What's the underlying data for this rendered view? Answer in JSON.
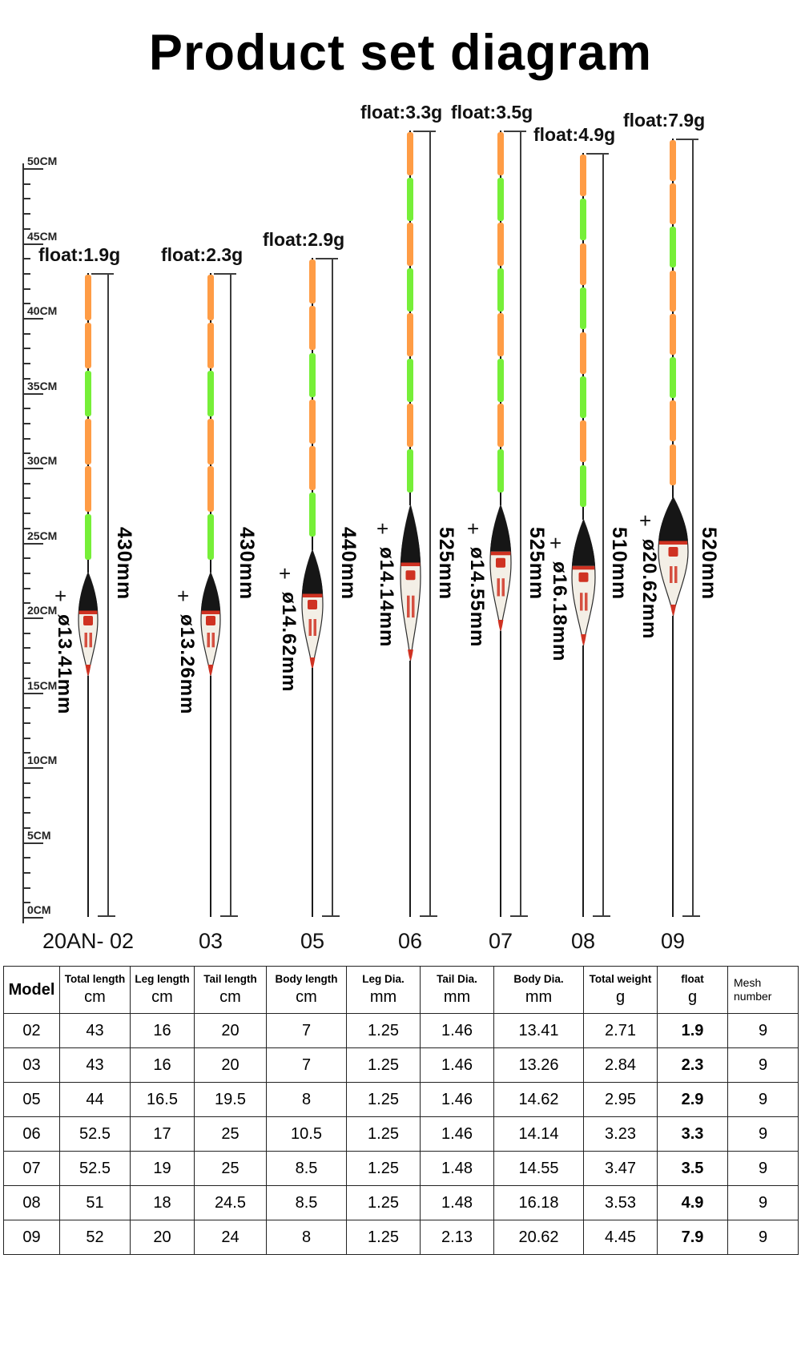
{
  "title": "Product set diagram",
  "glyphs": {
    "plus": "+"
  },
  "colors": {
    "stripe_orange": "#ff9c45",
    "stripe_green": "#76ef38",
    "body_dark": "#161616",
    "body_light": "#f3efe6",
    "accent_red": "#cf3222",
    "line": "#3d3d3d"
  },
  "ruler": {
    "major_labels_top_to_bottom": [
      "50CM",
      "45CM",
      "40CM",
      "35CM",
      "30CM",
      "25CM",
      "20CM",
      "15CM",
      "10CM",
      "5CM",
      "0CM"
    ]
  },
  "floats": [
    {
      "model_label": "20AN- 02",
      "weight_label": "float:1.9g",
      "diameter_label": "ø13.41mm",
      "length_label": "430mm",
      "stripes": [
        "orange",
        "orange",
        "green",
        "orange",
        "orange",
        "green"
      ]
    },
    {
      "model_label": "03",
      "weight_label": "float:2.3g",
      "diameter_label": "ø13.26mm",
      "length_label": "430mm",
      "stripes": [
        "orange",
        "orange",
        "green",
        "orange",
        "orange",
        "green"
      ]
    },
    {
      "model_label": "05",
      "weight_label": "float:2.9g",
      "diameter_label": "ø14.62mm",
      "length_label": "440mm",
      "stripes": [
        "orange",
        "orange",
        "green",
        "orange",
        "orange",
        "green"
      ]
    },
    {
      "model_label": "06",
      "weight_label": "float:3.3g",
      "diameter_label": "ø14.14mm",
      "length_label": "525mm",
      "stripes": [
        "orange",
        "green",
        "orange",
        "green",
        "orange",
        "green",
        "orange",
        "green"
      ]
    },
    {
      "model_label": "07",
      "weight_label": "float:3.5g",
      "diameter_label": "ø14.55mm",
      "length_label": "525mm",
      "stripes": [
        "orange",
        "green",
        "orange",
        "green",
        "orange",
        "green",
        "orange",
        "green"
      ]
    },
    {
      "model_label": "08",
      "weight_label": "float:4.9g",
      "diameter_label": "ø16.18mm",
      "length_label": "510mm",
      "stripes": [
        "orange",
        "green",
        "orange",
        "green",
        "orange",
        "green",
        "orange",
        "green"
      ]
    },
    {
      "model_label": "09",
      "weight_label": "float:7.9g",
      "diameter_label": "ø20.62mm",
      "length_label": "520mm",
      "stripes": [
        "orange",
        "orange",
        "green",
        "orange",
        "orange",
        "green",
        "orange",
        "orange"
      ]
    }
  ],
  "table": {
    "headers": [
      {
        "label": "Model",
        "unit": ""
      },
      {
        "label": "Total length",
        "unit": "cm"
      },
      {
        "label": "Leg length",
        "unit": "cm"
      },
      {
        "label": "Tail length",
        "unit": "cm"
      },
      {
        "label": "Body length",
        "unit": "cm"
      },
      {
        "label": "Leg Dia.",
        "unit": "mm"
      },
      {
        "label": "Tail Dia.",
        "unit": "mm"
      },
      {
        "label": "Body Dia.",
        "unit": "mm"
      },
      {
        "label": "Total weight",
        "unit": "g"
      },
      {
        "label": "float",
        "unit": "g"
      },
      {
        "label": "Mesh number",
        "unit": ""
      }
    ],
    "rows": [
      {
        "cells": [
          "02",
          "43",
          "16",
          "20",
          "7",
          "1.25",
          "1.46",
          "13.41",
          "2.71",
          "1.9",
          "9"
        ]
      },
      {
        "cells": [
          "03",
          "43",
          "16",
          "20",
          "7",
          "1.25",
          "1.46",
          "13.26",
          "2.84",
          "2.3",
          "9"
        ]
      },
      {
        "cells": [
          "05",
          "44",
          "16.5",
          "19.5",
          "8",
          "1.25",
          "1.46",
          "14.62",
          "2.95",
          "2.9",
          "9"
        ]
      },
      {
        "cells": [
          "06",
          "52.5",
          "17",
          "25",
          "10.5",
          "1.25",
          "1.46",
          "14.14",
          "3.23",
          "3.3",
          "9"
        ]
      },
      {
        "cells": [
          "07",
          "52.5",
          "19",
          "25",
          "8.5",
          "1.25",
          "1.48",
          "14.55",
          "3.47",
          "3.5",
          "9"
        ]
      },
      {
        "cells": [
          "08",
          "51",
          "18",
          "24.5",
          "8.5",
          "1.25",
          "1.48",
          "16.18",
          "3.53",
          "4.9",
          "9"
        ]
      },
      {
        "cells": [
          "09",
          "52",
          "20",
          "24",
          "8",
          "1.25",
          "2.13",
          "20.62",
          "4.45",
          "7.9",
          "9"
        ]
      }
    ]
  }
}
